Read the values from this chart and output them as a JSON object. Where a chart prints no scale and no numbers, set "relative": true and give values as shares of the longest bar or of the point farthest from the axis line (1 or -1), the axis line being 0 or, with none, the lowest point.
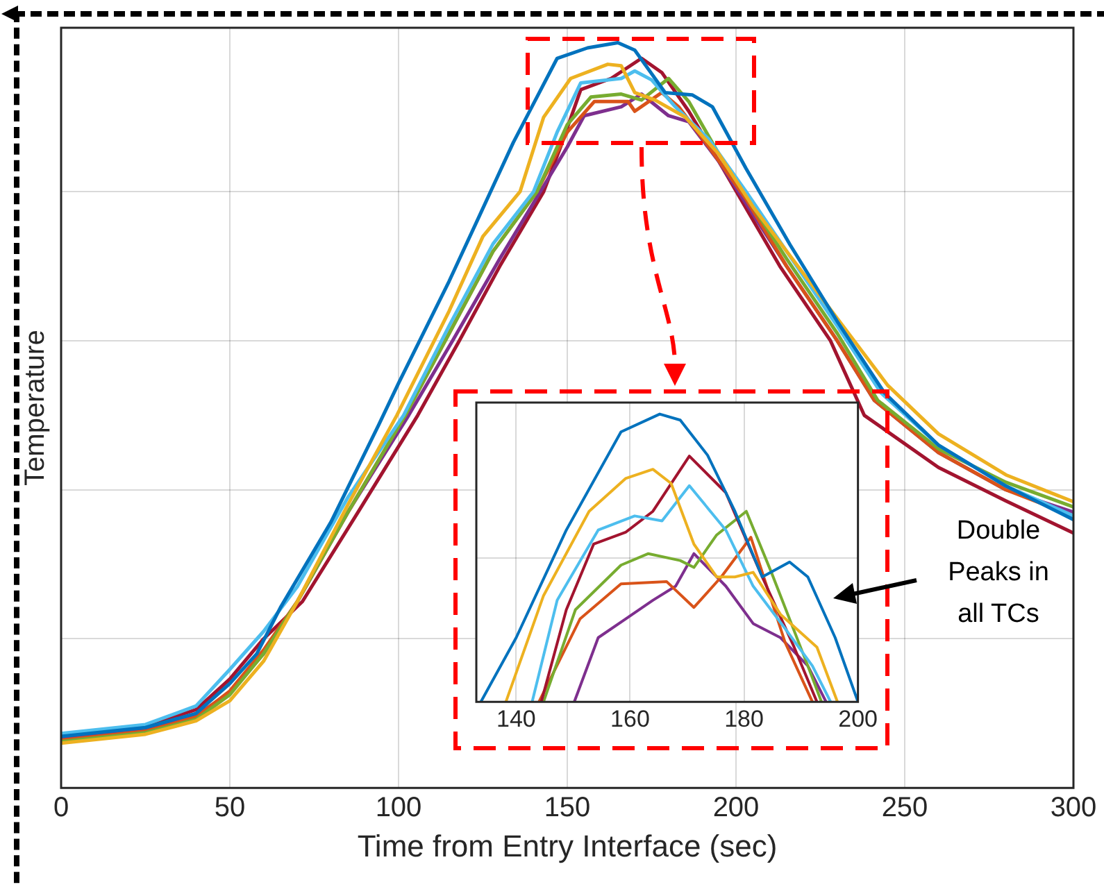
{
  "chart_data": [
    {
      "type": "line",
      "relative": true,
      "xlabel": "Time from Entry Interface (sec)",
      "ylabel": "Temperature",
      "xlim": [
        0,
        300
      ],
      "xticks": [
        0,
        50,
        100,
        150,
        200,
        250,
        300
      ],
      "grid": true,
      "series": [
        {
          "color": "#0072bd",
          "x": [
            0,
            25,
            40,
            50,
            58,
            65,
            80,
            94,
            100,
            115,
            124,
            134,
            147,
            156,
            165,
            170,
            179,
            187,
            193,
            203,
            216,
            230,
            244,
            260,
            280,
            300
          ],
          "values": [
            0.069,
            0.081,
            0.1,
            0.14,
            0.18,
            0.242,
            0.357,
            0.486,
            0.543,
            0.68,
            0.768,
            0.866,
            0.979,
            0.993,
            1,
            0.99,
            0.933,
            0.93,
            0.914,
            0.831,
            0.729,
            0.626,
            0.53,
            0.46,
            0.405,
            0.36
          ]
        },
        {
          "color": "#edb120",
          "x": [
            0,
            25,
            40,
            50,
            60,
            70,
            85,
            99.5,
            115,
            125,
            136,
            143,
            151,
            162,
            166,
            170,
            176,
            185,
            195,
            205,
            215,
            230,
            245,
            260,
            280,
            300
          ],
          "values": [
            0.06,
            0.072,
            0.09,
            0.117,
            0.17,
            0.25,
            0.38,
            0.5,
            0.64,
            0.74,
            0.8,
            0.9,
            0.952,
            0.971,
            0.969,
            0.933,
            0.923,
            0.9,
            0.85,
            0.78,
            0.72,
            0.63,
            0.54,
            0.475,
            0.42,
            0.384
          ]
        },
        {
          "color": "#4dbeee",
          "x": [
            0,
            25,
            40,
            50,
            60,
            70,
            85,
            101.5,
            115,
            128,
            140,
            147,
            154,
            166,
            170,
            175,
            182,
            192,
            203,
            215,
            230,
            243,
            260,
            280,
            300
          ],
          "values": [
            0.073,
            0.085,
            0.11,
            0.159,
            0.21,
            0.27,
            0.39,
            0.5,
            0.62,
            0.73,
            0.8,
            0.88,
            0.946,
            0.952,
            0.962,
            0.95,
            0.914,
            0.87,
            0.8,
            0.72,
            0.62,
            0.53,
            0.46,
            0.405,
            0.365
          ]
        },
        {
          "color": "#77ac30",
          "x": [
            0,
            25,
            40,
            50,
            60,
            70,
            85,
            102,
            115,
            128,
            141,
            150,
            157,
            166,
            172,
            180,
            186,
            195,
            205,
            215,
            230,
            242,
            260,
            280,
            300
          ],
          "values": [
            0.062,
            0.074,
            0.092,
            0.125,
            0.18,
            0.25,
            0.37,
            0.5,
            0.61,
            0.72,
            0.8,
            0.89,
            0.927,
            0.931,
            0.923,
            0.952,
            0.921,
            0.85,
            0.78,
            0.71,
            0.61,
            0.52,
            0.455,
            0.41,
            0.377
          ]
        },
        {
          "color": "#d95319",
          "x": [
            0,
            25,
            40,
            50,
            60,
            70,
            85,
            102,
            115,
            128,
            141,
            150,
            158,
            168,
            170,
            178,
            183,
            192,
            203,
            215,
            230,
            241,
            260,
            280,
            300
          ],
          "values": [
            0.064,
            0.076,
            0.095,
            0.13,
            0.185,
            0.25,
            0.37,
            0.5,
            0.61,
            0.72,
            0.8,
            0.88,
            0.921,
            0.921,
            0.908,
            0.933,
            0.914,
            0.86,
            0.79,
            0.7,
            0.6,
            0.52,
            0.45,
            0.4,
            0.365
          ]
        },
        {
          "color": "#7e2f8e",
          "x": [
            0,
            25,
            40,
            50,
            60,
            70,
            85,
            103,
            116,
            130,
            142,
            150,
            155,
            166,
            172,
            180,
            186,
            195,
            205,
            215,
            230,
            241,
            260,
            280,
            300
          ],
          "values": [
            0.066,
            0.078,
            0.097,
            0.128,
            0.18,
            0.25,
            0.37,
            0.5,
            0.6,
            0.71,
            0.8,
            0.86,
            0.902,
            0.914,
            0.931,
            0.902,
            0.894,
            0.84,
            0.77,
            0.7,
            0.6,
            0.52,
            0.45,
            0.4,
            0.37
          ]
        },
        {
          "color": "#a2142f",
          "x": [
            0,
            25,
            40,
            50,
            60,
            71.5,
            88,
            105.7,
            118,
            130,
            143,
            148,
            154,
            163,
            172,
            178,
            186,
            195,
            204,
            213,
            228,
            238,
            260,
            280,
            300
          ],
          "values": [
            0.071,
            0.083,
            0.105,
            0.146,
            0.2,
            0.25,
            0.37,
            0.5,
            0.6,
            0.7,
            0.8,
            0.86,
            0.937,
            0.952,
            0.979,
            0.96,
            0.908,
            0.84,
            0.77,
            0.7,
            0.6,
            0.5,
            0.43,
            0.385,
            0.342
          ]
        }
      ]
    },
    {
      "type": "line",
      "relative": true,
      "xlim": [
        133,
        200
      ],
      "xticks": [
        140,
        160,
        180,
        200
      ],
      "grid": true,
      "annotations": [
        "Double Peaks in all TCs"
      ],
      "series": [
        {
          "color": "#0072bd",
          "x": [
            133.8,
            140,
            148.8,
            158.4,
            165.2,
            168.8,
            173.6,
            178.4,
            183.2,
            188,
            191.2,
            196,
            200
          ],
          "values": [
            0,
            0.223,
            0.597,
            0.938,
            1,
            0.979,
            0.857,
            0.662,
            0.434,
            0.486,
            0.434,
            0.223,
            0
          ]
        },
        {
          "color": "#edb120",
          "x": [
            138.2,
            144.8,
            152.8,
            159.2,
            164,
            167.2,
            171.2,
            175.2,
            178.4,
            181.6,
            186.4,
            192.8,
            196.4
          ],
          "values": [
            0,
            0.369,
            0.662,
            0.776,
            0.808,
            0.759,
            0.548,
            0.434,
            0.434,
            0.45,
            0.304,
            0.19,
            0
          ]
        },
        {
          "color": "#4dbeee",
          "x": [
            142.8,
            147.2,
            154.4,
            160.8,
            165.6,
            170.4,
            176.8,
            181.6,
            187.2,
            192,
            195.2
          ],
          "values": [
            0,
            0.353,
            0.597,
            0.646,
            0.629,
            0.751,
            0.597,
            0.402,
            0.255,
            0.125,
            0
          ]
        },
        {
          "color": "#a2142f",
          "x": [
            144.4,
            148.8,
            153.6,
            159.2,
            164,
            170.4,
            176.8,
            183.2,
            188.8,
            192.8
          ],
          "values": [
            0,
            0.32,
            0.548,
            0.589,
            0.662,
            0.854,
            0.727,
            0.434,
            0.19,
            0
          ]
        },
        {
          "color": "#77ac30",
          "x": [
            144.8,
            150.4,
            158.4,
            163.2,
            168.8,
            171.2,
            175.2,
            180.4,
            184.8,
            191.2,
            193.6
          ],
          "values": [
            0,
            0.32,
            0.475,
            0.515,
            0.491,
            0.467,
            0.58,
            0.662,
            0.45,
            0.125,
            0
          ]
        },
        {
          "color": "#d95319",
          "x": [
            144,
            151.2,
            158.4,
            166.4,
            171.2,
            176,
            181.2,
            183.2,
            187.2,
            192
          ],
          "values": [
            0,
            0.288,
            0.41,
            0.418,
            0.328,
            0.434,
            0.572,
            0.45,
            0.207,
            0
          ]
        },
        {
          "color": "#7e2f8e",
          "x": [
            150.2,
            154.4,
            159.2,
            164,
            168,
            171.2,
            176.8,
            181.6,
            186.4,
            191.2,
            194.4
          ],
          "values": [
            0,
            0.223,
            0.288,
            0.353,
            0.402,
            0.515,
            0.402,
            0.272,
            0.223,
            0.125,
            0
          ]
        }
      ]
    }
  ]
}
